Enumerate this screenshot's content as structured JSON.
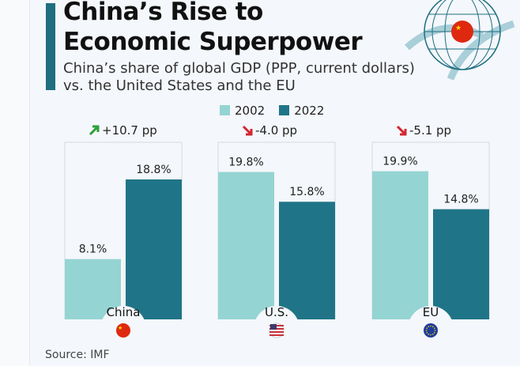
{
  "title_line1": "China’s Rise to",
  "title_line2": "Economic Superpower",
  "subtitle_line1": "China’s share of global GDP (PPP, current dollars)",
  "subtitle_line2": "vs. the United States and the EU",
  "source": "Source: IMF",
  "colors": {
    "y2002": "#94d4d2",
    "y2022": "#1f7587",
    "up": "#2e9e3a",
    "down": "#d22630"
  },
  "chart_data": {
    "type": "bar",
    "categories": [
      "China",
      "U.S.",
      "EU"
    ],
    "series": [
      {
        "name": "2002",
        "values": [
          8.1,
          19.8,
          19.9
        ],
        "labels": [
          "8.1%",
          "19.8%",
          "19.9%"
        ]
      },
      {
        "name": "2022",
        "values": [
          18.8,
          15.8,
          14.8
        ],
        "labels": [
          "18.8%",
          "15.8%",
          "14.8%"
        ]
      }
    ],
    "changes": [
      "+10.7 pp",
      "-4.0 pp",
      "-5.1 pp"
    ],
    "change_direction": [
      "up",
      "down",
      "down"
    ],
    "flags": [
      "china-flag-icon",
      "us-flag-icon",
      "eu-flag-icon"
    ],
    "legend": "top-center",
    "grid": false,
    "ylim": [
      0,
      23
    ]
  }
}
